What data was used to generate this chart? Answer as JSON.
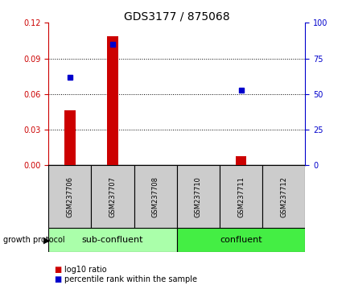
{
  "title": "GDS3177 / 875068",
  "samples": [
    "GSM237706",
    "GSM237707",
    "GSM237708",
    "GSM237710",
    "GSM237711",
    "GSM237712"
  ],
  "log10_ratio": [
    0.046,
    0.109,
    0.0,
    0.0,
    0.008,
    0.0
  ],
  "percentile_rank": [
    62,
    85,
    0,
    0,
    53,
    0
  ],
  "ylim_left": [
    0,
    0.12
  ],
  "ylim_right": [
    0,
    100
  ],
  "yticks_left": [
    0,
    0.03,
    0.06,
    0.09,
    0.12
  ],
  "yticks_right": [
    0,
    25,
    50,
    75,
    100
  ],
  "bar_color": "#cc0000",
  "dot_color": "#0000cc",
  "bar_width": 0.25,
  "groups": [
    {
      "label": "sub-confluent",
      "start": 0,
      "end": 3,
      "color": "#aaffaa"
    },
    {
      "label": "confluent",
      "start": 3,
      "end": 6,
      "color": "#44ee44"
    }
  ],
  "group_label": "growth protocol",
  "legend_bar_label": "log10 ratio",
  "legend_dot_label": "percentile rank within the sample",
  "tick_color_left": "#cc0000",
  "tick_color_right": "#0000cc",
  "sample_box_color": "#cccccc",
  "title_fontsize": 10,
  "axis_fontsize": 7,
  "sample_fontsize": 6,
  "group_fontsize": 8,
  "legend_fontsize": 7
}
